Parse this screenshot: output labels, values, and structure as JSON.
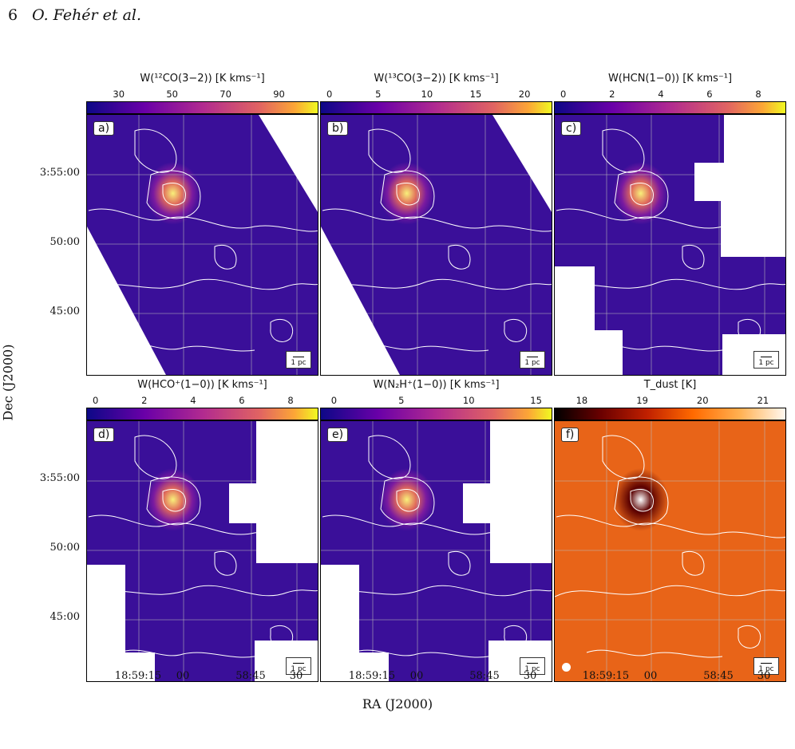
{
  "header": {
    "page_number": "6",
    "authors": "O. Fehér et al."
  },
  "panels": [
    {
      "label": "a)",
      "cbar_title": "W(¹²CO(3−2)) [K kms⁻¹]",
      "cbar_ticks": [
        "30",
        "50",
        "70",
        "90"
      ],
      "cmap": "plasma",
      "scale": "1 pc"
    },
    {
      "label": "b)",
      "cbar_title": "W(¹³CO(3−2)) [K kms⁻¹]",
      "cbar_ticks": [
        "0",
        "5",
        "10",
        "15",
        "20"
      ],
      "cmap": "plasma",
      "scale": "1 pc"
    },
    {
      "label": "c)",
      "cbar_title": "W(HCN(1−0)) [K kms⁻¹]",
      "cbar_ticks": [
        "0",
        "2",
        "4",
        "6",
        "8"
      ],
      "cmap": "plasma",
      "scale": "1 pc"
    },
    {
      "label": "d)",
      "cbar_title": "W(HCO⁺(1−0)) [K kms⁻¹]",
      "cbar_ticks": [
        "0",
        "2",
        "4",
        "6",
        "8"
      ],
      "cmap": "plasma",
      "scale": "1 pc"
    },
    {
      "label": "e)",
      "cbar_title": "W(N₂H⁺(1−0)) [K kms⁻¹]",
      "cbar_ticks": [
        "0",
        "5",
        "10",
        "15"
      ],
      "cmap": "plasma",
      "scale": "1 pc"
    },
    {
      "label": "f)",
      "cbar_title": "T_dust [K]",
      "cbar_ticks": [
        "18",
        "19",
        "20",
        "21"
      ],
      "cmap": "hot",
      "scale": "1 pc"
    }
  ],
  "y_ticks": [
    "3:55:00",
    "50:00",
    "45:00"
  ],
  "x_ticks": [
    "18:59:15",
    "00",
    "58:45",
    "30"
  ],
  "y_axis_label": "Dec (J2000)",
  "x_axis_label": "RA (J2000)",
  "colors": {
    "plasma_dark": "#2a0a8a",
    "plasma_mid": "#b3338f",
    "plasma_bright": "#f6e51c",
    "hot_low": "#000000",
    "hot_mid": "#e06010",
    "hot_high": "#fff7ee"
  }
}
